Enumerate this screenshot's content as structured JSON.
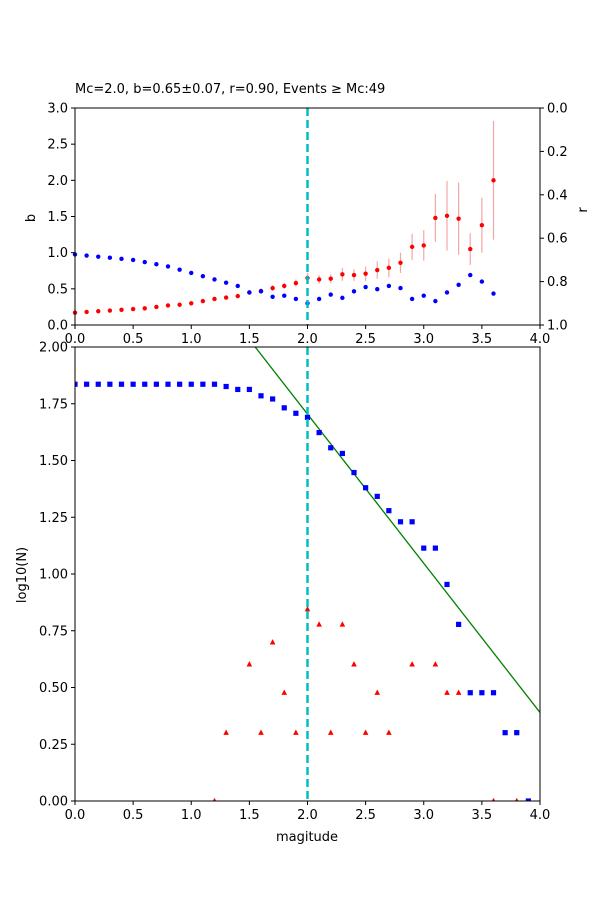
{
  "chart_data": [
    {
      "type": "scatter",
      "title": "Mc=2.0, b=0.65±0.07, r=0.90, Events ≥ Mc:49",
      "xlabel": "",
      "ylabel": "b",
      "ylabel_right": "r",
      "xlim": [
        0,
        4
      ],
      "ylim": [
        0,
        3
      ],
      "ylim_right": [
        1,
        0
      ],
      "xticks": [
        "0.0",
        "0.5",
        "1.0",
        "1.5",
        "2.0",
        "2.5",
        "3.0",
        "3.5",
        "4.0"
      ],
      "yticks": [
        "0.0",
        "0.5",
        "1.0",
        "1.5",
        "2.0",
        "2.5",
        "3.0"
      ],
      "yticks_right": [
        "0.0",
        "0.2",
        "0.4",
        "0.6",
        "0.8",
        "1.0"
      ],
      "vline": 2.0,
      "series": [
        {
          "axis": "left",
          "color": "#ff0000",
          "errorbar_color": "#f4a6a6",
          "x": [
            0.0,
            0.1,
            0.2,
            0.3,
            0.4,
            0.5,
            0.6,
            0.7,
            0.8,
            0.9,
            1.0,
            1.1,
            1.2,
            1.3,
            1.4,
            1.5,
            1.6,
            1.7,
            1.8,
            1.9,
            2.0,
            2.1,
            2.2,
            2.3,
            2.4,
            2.5,
            2.6,
            2.7,
            2.8,
            2.9,
            3.0,
            3.1,
            3.2,
            3.3,
            3.4,
            3.5,
            3.6
          ],
          "y": [
            0.17,
            0.18,
            0.19,
            0.2,
            0.21,
            0.22,
            0.23,
            0.25,
            0.27,
            0.28,
            0.3,
            0.33,
            0.36,
            0.38,
            0.4,
            0.45,
            0.47,
            0.51,
            0.54,
            0.58,
            0.65,
            0.63,
            0.64,
            0.7,
            0.69,
            0.71,
            0.76,
            0.79,
            0.86,
            1.08,
            1.1,
            1.48,
            1.51,
            1.47,
            1.05,
            1.38,
            2.0
          ],
          "err": [
            0.01,
            0.01,
            0.01,
            0.01,
            0.01,
            0.01,
            0.01,
            0.01,
            0.01,
            0.01,
            0.02,
            0.02,
            0.02,
            0.02,
            0.02,
            0.03,
            0.03,
            0.04,
            0.04,
            0.05,
            0.07,
            0.06,
            0.06,
            0.09,
            0.08,
            0.1,
            0.12,
            0.13,
            0.14,
            0.18,
            0.21,
            0.33,
            0.48,
            0.5,
            0.22,
            0.38,
            0.82
          ]
        },
        {
          "axis": "right",
          "color": "#0000ff",
          "x": [
            0.0,
            0.1,
            0.2,
            0.3,
            0.4,
            0.5,
            0.6,
            0.7,
            0.8,
            0.9,
            1.0,
            1.1,
            1.2,
            1.3,
            1.4,
            1.5,
            1.6,
            1.7,
            1.8,
            1.9,
            2.0,
            2.1,
            2.2,
            2.3,
            2.4,
            2.5,
            2.6,
            2.7,
            2.8,
            2.9,
            3.0,
            3.1,
            3.2,
            3.3,
            3.4,
            3.5,
            3.6
          ],
          "y": [
            0.675,
            0.68,
            0.685,
            0.69,
            0.695,
            0.7,
            0.71,
            0.72,
            0.73,
            0.745,
            0.76,
            0.775,
            0.79,
            0.805,
            0.82,
            0.85,
            0.845,
            0.87,
            0.865,
            0.88,
            0.9,
            0.88,
            0.86,
            0.875,
            0.845,
            0.825,
            0.835,
            0.82,
            0.83,
            0.88,
            0.865,
            0.89,
            0.85,
            0.815,
            0.77,
            0.8,
            0.855
          ]
        }
      ]
    },
    {
      "type": "scatter",
      "title": "",
      "xlabel": "magitude",
      "ylabel": "log10(N)",
      "xlim": [
        0,
        4
      ],
      "ylim": [
        0,
        2
      ],
      "xticks": [
        "0.0",
        "0.5",
        "1.0",
        "1.5",
        "2.0",
        "2.5",
        "3.0",
        "3.5",
        "4.0"
      ],
      "yticks": [
        "0.00",
        "0.25",
        "0.50",
        "0.75",
        "1.00",
        "1.25",
        "1.50",
        "1.75",
        "2.00"
      ],
      "vline": 2.0,
      "fit_line": {
        "color": "#008000",
        "x": [
          1.55,
          4.0
        ],
        "y": [
          2.0,
          0.39
        ]
      },
      "series": [
        {
          "marker": "square",
          "color": "#0000ff",
          "x": [
            0.0,
            0.1,
            0.2,
            0.3,
            0.4,
            0.5,
            0.6,
            0.7,
            0.8,
            0.9,
            1.0,
            1.1,
            1.2,
            1.3,
            1.4,
            1.5,
            1.6,
            1.7,
            1.8,
            1.9,
            2.0,
            2.1,
            2.2,
            2.3,
            2.4,
            2.5,
            2.6,
            2.7,
            2.8,
            2.9,
            3.0,
            3.1,
            3.2,
            3.3,
            3.4,
            3.5,
            3.6,
            3.7,
            3.8,
            3.9
          ],
          "y": [
            1.836,
            1.836,
            1.836,
            1.836,
            1.836,
            1.836,
            1.836,
            1.836,
            1.836,
            1.836,
            1.836,
            1.836,
            1.836,
            1.826,
            1.813,
            1.813,
            1.785,
            1.771,
            1.732,
            1.708,
            1.69,
            1.623,
            1.556,
            1.531,
            1.447,
            1.38,
            1.342,
            1.279,
            1.23,
            1.23,
            1.114,
            1.114,
            0.954,
            0.778,
            0.477,
            0.477,
            0.477,
            0.301,
            0.301,
            0.0
          ]
        },
        {
          "marker": "triangle",
          "color": "#ff0000",
          "x": [
            1.2,
            1.3,
            1.5,
            1.6,
            1.7,
            1.8,
            1.9,
            2.0,
            2.1,
            2.2,
            2.3,
            2.4,
            2.5,
            2.6,
            2.7,
            2.9,
            3.1,
            3.2,
            3.3,
            3.6,
            3.8
          ],
          "y": [
            0.0,
            0.301,
            0.602,
            0.301,
            0.699,
            0.477,
            0.301,
            0.845,
            0.778,
            0.301,
            0.778,
            0.602,
            0.301,
            0.477,
            0.301,
            0.602,
            0.602,
            0.477,
            0.477,
            0.0,
            0.0
          ]
        }
      ]
    }
  ]
}
